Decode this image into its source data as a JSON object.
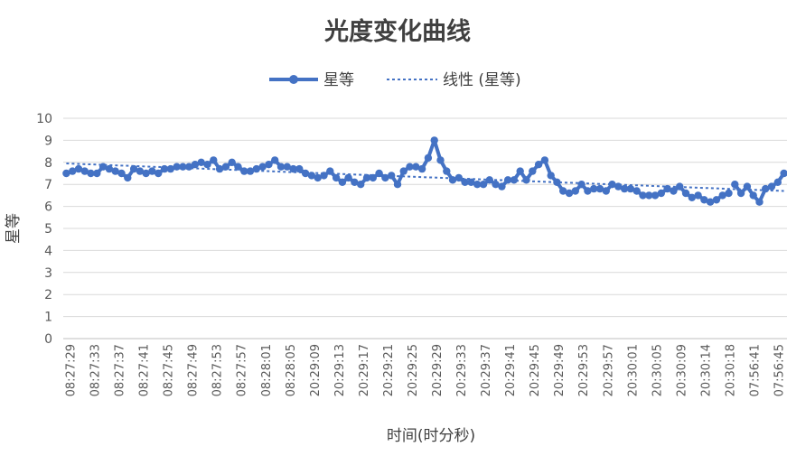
{
  "chart_data": {
    "type": "line",
    "title": "光度变化曲线",
    "xlabel": "时间(时分秒)",
    "ylabel": "星等",
    "ylim": [
      0,
      10
    ],
    "y_ticks": [
      "0",
      "1",
      "2",
      "3",
      "4",
      "5",
      "6",
      "7",
      "8",
      "9",
      "10"
    ],
    "grid": "horizontal",
    "legend_position": "top",
    "x_tick_labels": [
      "08:27:29",
      "08:27:33",
      "08:27:37",
      "08:27:41",
      "08:27:45",
      "08:27:49",
      "08:27:53",
      "08:27:57",
      "08:28:01",
      "08:28:05",
      "20:29:09",
      "20:29:13",
      "20:29:17",
      "20:29:21",
      "20:29:25",
      "20:29:29",
      "20:29:33",
      "20:29:37",
      "20:29:41",
      "20:29:45",
      "20:29:49",
      "20:29:53",
      "20:29:57",
      "20:30:01",
      "20:30:05",
      "20:30:09",
      "20:30:14",
      "20:30:18",
      "07:56:41",
      "07:56:45"
    ],
    "series": [
      {
        "name": "星等",
        "color": "#4472c4",
        "segments": [
          [
            7.5,
            7.6,
            7.7,
            7.6,
            7.5,
            7.5,
            7.8,
            7.7,
            7.6,
            7.5,
            7.3,
            7.7,
            7.6,
            7.5,
            7.6,
            7.5,
            7.7,
            7.7,
            7.8,
            7.8,
            7.8,
            7.9,
            8.0,
            7.9,
            8.1,
            7.7,
            7.8,
            8.0,
            7.8,
            7.6,
            7.6,
            7.7,
            7.8,
            7.9,
            8.1,
            7.8,
            7.8
          ],
          [
            7.7,
            7.7,
            7.5,
            7.4,
            7.3,
            7.4,
            7.6,
            7.3,
            7.1,
            7.3,
            7.1,
            7.0,
            7.3,
            7.3,
            7.5,
            7.3,
            7.4,
            7.0,
            7.6,
            7.8,
            7.8,
            7.7,
            8.2,
            9.0,
            8.1,
            7.6,
            7.2,
            7.3,
            7.1,
            7.1,
            7.0,
            7.0,
            7.2,
            7.0,
            6.9,
            7.2,
            7.2,
            7.6,
            7.2,
            7.6,
            7.9,
            8.1,
            7.4,
            7.1,
            6.7,
            6.6,
            6.7,
            7.0,
            6.7,
            6.8,
            6.8,
            6.7,
            7.0,
            6.9,
            6.8,
            6.8,
            6.7,
            6.5,
            6.5,
            6.5,
            6.6,
            6.8,
            6.7,
            6.9,
            6.6,
            6.4,
            6.5,
            6.3,
            6.2,
            6.3,
            6.5,
            6.6
          ],
          [
            7.0,
            6.6,
            6.9,
            6.5,
            6.2,
            6.8,
            6.9,
            7.1,
            7.5
          ]
        ]
      },
      {
        "name": "线性 (星等)",
        "color": "#4472c4",
        "trend_start": 7.95,
        "trend_end": 6.7
      }
    ]
  }
}
